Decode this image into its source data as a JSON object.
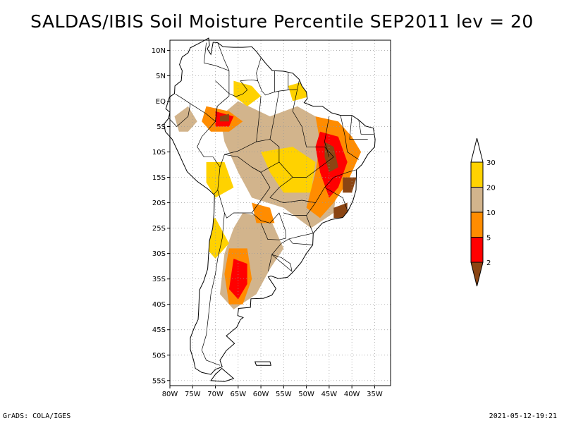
{
  "title": "SALDAS/IBIS Soil Moisture Percentile SEP2011 lev = 20",
  "map": {
    "lon_range": [
      -80,
      -31.5
    ],
    "lat_range": [
      -56,
      12
    ],
    "lat_ticks": [
      {
        "v": 10,
        "label": "10N"
      },
      {
        "v": 5,
        "label": "5N"
      },
      {
        "v": 0,
        "label": "EQ"
      },
      {
        "v": -5,
        "label": "5S"
      },
      {
        "v": -10,
        "label": "10S"
      },
      {
        "v": -15,
        "label": "15S"
      },
      {
        "v": -20,
        "label": "20S"
      },
      {
        "v": -25,
        "label": "25S"
      },
      {
        "v": -30,
        "label": "30S"
      },
      {
        "v": -35,
        "label": "35S"
      },
      {
        "v": -40,
        "label": "40S"
      },
      {
        "v": -45,
        "label": "45S"
      },
      {
        "v": -50,
        "label": "50S"
      },
      {
        "v": -55,
        "label": "55S"
      }
    ],
    "lon_ticks": [
      {
        "v": -80,
        "label": "80W"
      },
      {
        "v": -75,
        "label": "75W"
      },
      {
        "v": -70,
        "label": "70W"
      },
      {
        "v": -65,
        "label": "65W"
      },
      {
        "v": -60,
        "label": "60W"
      },
      {
        "v": -55,
        "label": "55W"
      },
      {
        "v": -50,
        "label": "50W"
      },
      {
        "v": -45,
        "label": "45W"
      },
      {
        "v": -40,
        "label": "40W"
      },
      {
        "v": -35,
        "label": "35W"
      }
    ],
    "grid": true,
    "percentile_regions": [
      {
        "level": 20,
        "points": [
          [
            -65,
            0
          ],
          [
            -58,
            -3
          ],
          [
            -52,
            -1
          ],
          [
            -48,
            -3
          ],
          [
            -44,
            -8
          ],
          [
            -43,
            -15
          ],
          [
            -44,
            -22
          ],
          [
            -49,
            -25
          ],
          [
            -55,
            -21
          ],
          [
            -62,
            -19
          ],
          [
            -65,
            -14
          ],
          [
            -68,
            -8
          ],
          [
            -69,
            -3
          ]
        ]
      },
      {
        "level": 20,
        "points": [
          [
            -64,
            -22
          ],
          [
            -58,
            -23
          ],
          [
            -55,
            -29
          ],
          [
            -58,
            -33
          ],
          [
            -61,
            -38
          ],
          [
            -66,
            -41
          ],
          [
            -69,
            -38
          ],
          [
            -68,
            -30
          ],
          [
            -66,
            -25
          ]
        ]
      },
      {
        "level": 20,
        "points": [
          [
            -79,
            -3
          ],
          [
            -76,
            -1
          ],
          [
            -74,
            -4
          ],
          [
            -76,
            -6
          ],
          [
            -78,
            -6
          ]
        ]
      },
      {
        "level": 30,
        "points": [
          [
            -60,
            -10
          ],
          [
            -53,
            -9
          ],
          [
            -48,
            -12
          ],
          [
            -49,
            -18
          ],
          [
            -55,
            -18
          ],
          [
            -58,
            -14
          ]
        ]
      },
      {
        "level": 30,
        "points": [
          [
            -72,
            -12
          ],
          [
            -68,
            -12
          ],
          [
            -66,
            -17
          ],
          [
            -70,
            -19
          ],
          [
            -72,
            -16
          ]
        ]
      },
      {
        "level": 30,
        "points": [
          [
            -54,
            3
          ],
          [
            -50,
            4
          ],
          [
            -49,
            1
          ],
          [
            -53,
            0
          ]
        ]
      },
      {
        "level": 30,
        "points": [
          [
            -66,
            4
          ],
          [
            -62,
            3
          ],
          [
            -60,
            1
          ],
          [
            -63,
            -1
          ],
          [
            -66,
            1
          ]
        ]
      },
      {
        "level": 30,
        "points": [
          [
            -76,
            -24
          ],
          [
            -70,
            -23
          ],
          [
            -67,
            -28
          ],
          [
            -70,
            -31
          ],
          [
            -73,
            -28
          ]
        ]
      },
      {
        "level": 10,
        "points": [
          [
            -48,
            -3
          ],
          [
            -43,
            -4
          ],
          [
            -40,
            -7
          ],
          [
            -38,
            -10
          ],
          [
            -41,
            -16
          ],
          [
            -44,
            -20
          ],
          [
            -47,
            -23
          ],
          [
            -50,
            -21
          ],
          [
            -48,
            -14
          ],
          [
            -47,
            -8
          ]
        ]
      },
      {
        "level": 10,
        "points": [
          [
            -72,
            -1
          ],
          [
            -67,
            -2
          ],
          [
            -64,
            -4
          ],
          [
            -67,
            -6
          ],
          [
            -71,
            -6
          ],
          [
            -73,
            -4
          ]
        ]
      },
      {
        "level": 10,
        "points": [
          [
            -67,
            -29
          ],
          [
            -63,
            -29
          ],
          [
            -62,
            -35
          ],
          [
            -64,
            -40
          ],
          [
            -67,
            -40
          ],
          [
            -68,
            -34
          ]
        ]
      },
      {
        "level": 10,
        "points": [
          [
            -62,
            -20
          ],
          [
            -58,
            -21
          ],
          [
            -57,
            -24
          ],
          [
            -61,
            -24
          ]
        ]
      },
      {
        "level": 5,
        "points": [
          [
            -47,
            -6
          ],
          [
            -43,
            -7
          ],
          [
            -41,
            -12
          ],
          [
            -43,
            -17
          ],
          [
            -45,
            -19
          ],
          [
            -47,
            -14
          ],
          [
            -48,
            -9
          ]
        ]
      },
      {
        "level": 5,
        "points": [
          [
            -70,
            -2
          ],
          [
            -66,
            -3
          ],
          [
            -67,
            -5
          ],
          [
            -70,
            -5
          ]
        ]
      },
      {
        "level": 5,
        "points": [
          [
            -66,
            -31
          ],
          [
            -63,
            -32
          ],
          [
            -63,
            -36
          ],
          [
            -65,
            -39
          ],
          [
            -67,
            -37
          ]
        ]
      },
      {
        "level": 2,
        "points": [
          [
            -46,
            -8
          ],
          [
            -44,
            -9
          ],
          [
            -43,
            -13
          ],
          [
            -45,
            -14
          ],
          [
            -46,
            -11
          ]
        ]
      },
      {
        "level": 2,
        "points": [
          [
            -42,
            -15
          ],
          [
            -39,
            -15
          ],
          [
            -40,
            -18
          ],
          [
            -42,
            -18
          ]
        ]
      },
      {
        "level": 2,
        "points": [
          [
            -69,
            -3
          ],
          [
            -67,
            -2.5
          ],
          [
            -67,
            -4
          ],
          [
            -69,
            -4
          ]
        ]
      },
      {
        "level": 2,
        "points": [
          [
            -44,
            -21
          ],
          [
            -41,
            -20
          ],
          [
            -41,
            -23
          ],
          [
            -44,
            -23
          ]
        ]
      }
    ]
  },
  "legend": {
    "labels": [
      "30",
      "20",
      "10",
      "5",
      "2"
    ],
    "bins": [
      {
        "color": "#ffffff"
      },
      {
        "color": "#ffd200"
      },
      {
        "color": "#d2b48c"
      },
      {
        "color": "#ff8c00"
      },
      {
        "color": "#ff0000"
      },
      {
        "color": "#8b4513"
      }
    ]
  },
  "level_colors": {
    "30": "#ffd200",
    "20": "#d2b48c",
    "10": "#ff8c00",
    "5": "#ff0000",
    "2": "#8b4513"
  },
  "footer": {
    "left": "GrADS: COLA/IGES",
    "right": "2021-05-12-19:21"
  }
}
